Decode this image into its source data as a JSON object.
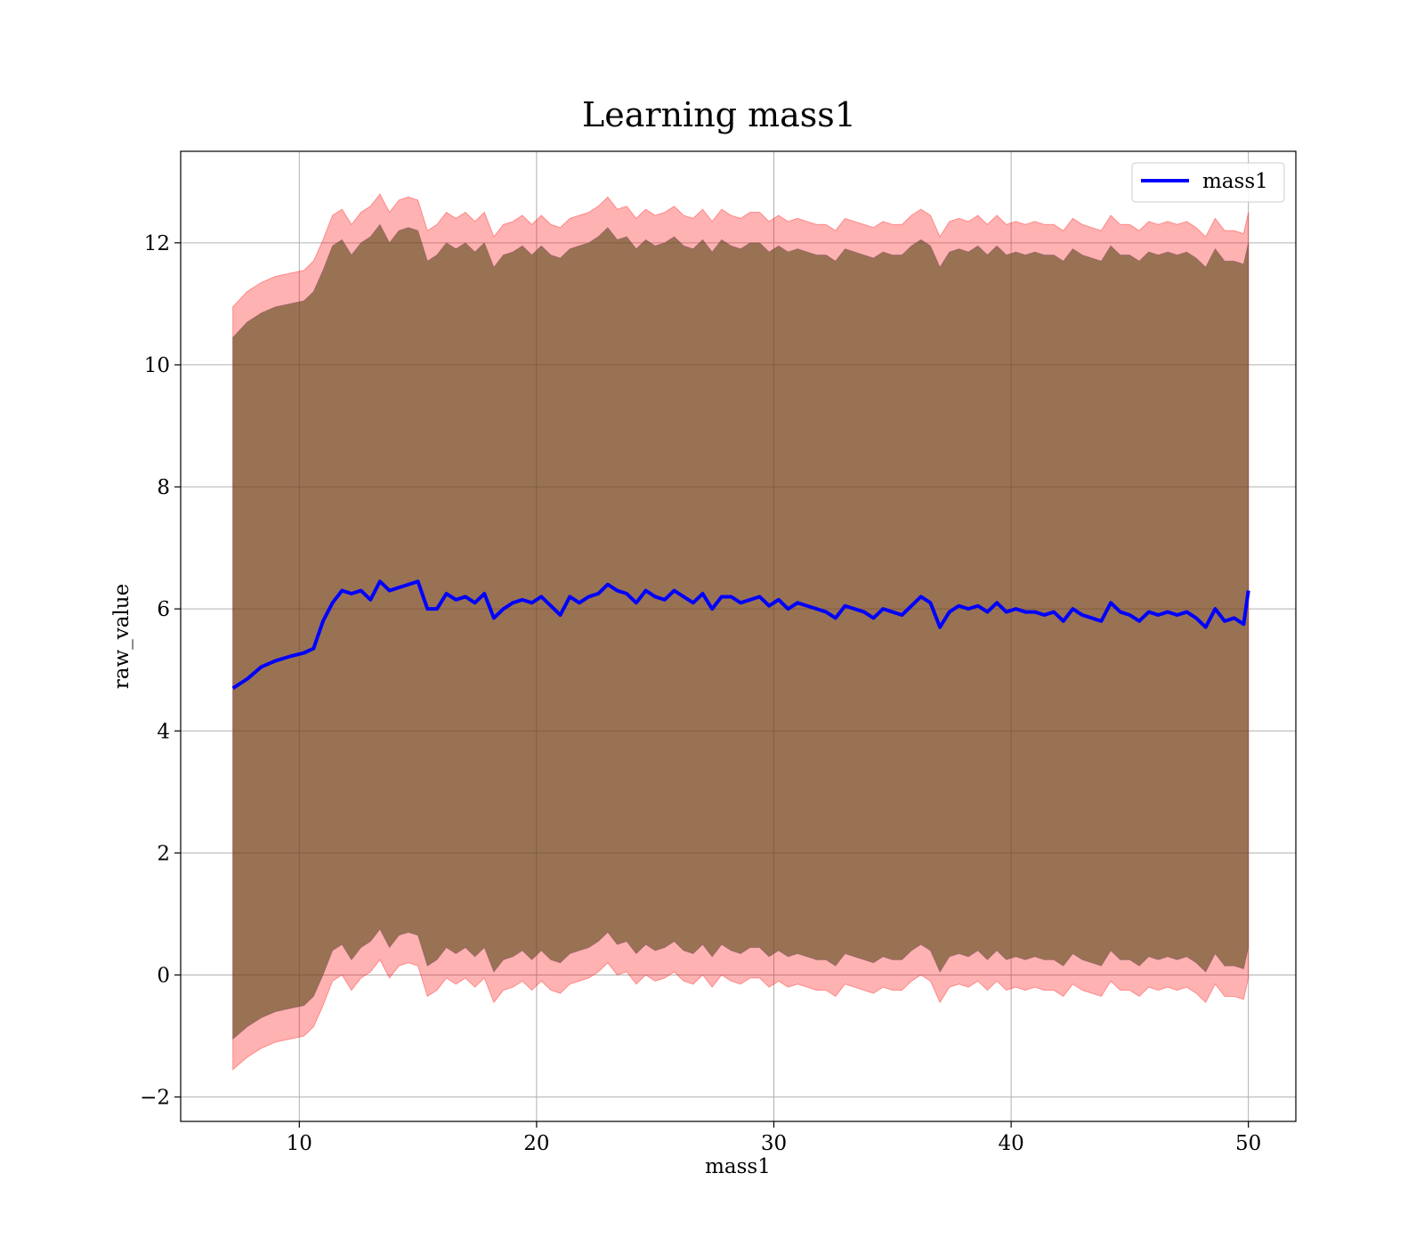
{
  "chart_data": {
    "type": "line",
    "title": "Learning mass1",
    "xlabel": "mass1",
    "ylabel": "raw_value",
    "xlim": [
      5.0,
      52.0
    ],
    "ylim": [
      -2.4,
      13.5
    ],
    "xticks": [
      10,
      20,
      30,
      40,
      50
    ],
    "yticks": [
      -2,
      0,
      2,
      4,
      6,
      8,
      10,
      12
    ],
    "grid": true,
    "legend": {
      "position": "top-right",
      "entries": [
        "mass1"
      ]
    },
    "colors": {
      "line": "#0000ff",
      "band_outer": "#ff0000",
      "band_inner": "#5a4a1a"
    },
    "series": [
      {
        "name": "mass1",
        "x": [
          7.2,
          7.8,
          8.4,
          9.0,
          9.6,
          10.2,
          10.6,
          11.0,
          11.4,
          11.8,
          12.2,
          12.6,
          13.0,
          13.4,
          13.8,
          14.2,
          14.6,
          15.0,
          15.4,
          15.8,
          16.2,
          16.6,
          17.0,
          17.4,
          17.8,
          18.2,
          18.6,
          19.0,
          19.4,
          19.8,
          20.2,
          20.6,
          21.0,
          21.4,
          21.8,
          22.2,
          22.6,
          23.0,
          23.4,
          23.8,
          24.2,
          24.6,
          25.0,
          25.4,
          25.8,
          26.2,
          26.6,
          27.0,
          27.4,
          27.8,
          28.2,
          28.6,
          29.0,
          29.4,
          29.8,
          30.2,
          30.6,
          31.0,
          31.4,
          31.8,
          32.2,
          32.6,
          33.0,
          33.4,
          33.8,
          34.2,
          34.6,
          35.0,
          35.4,
          35.8,
          36.2,
          36.6,
          37.0,
          37.4,
          37.8,
          38.2,
          38.6,
          39.0,
          39.4,
          39.8,
          40.2,
          40.6,
          41.0,
          41.4,
          41.8,
          42.2,
          42.6,
          43.0,
          43.4,
          43.8,
          44.2,
          44.6,
          45.0,
          45.4,
          45.8,
          46.2,
          46.6,
          47.0,
          47.4,
          47.8,
          48.2,
          48.6,
          49.0,
          49.4,
          49.8,
          50.0
        ],
        "mean": [
          4.7,
          4.85,
          5.05,
          5.15,
          5.22,
          5.28,
          5.35,
          5.8,
          6.1,
          6.3,
          6.25,
          6.3,
          6.15,
          6.45,
          6.3,
          6.35,
          6.4,
          6.45,
          6.0,
          6.0,
          6.25,
          6.15,
          6.2,
          6.1,
          6.25,
          5.85,
          6.0,
          6.1,
          6.15,
          6.1,
          6.2,
          6.05,
          5.9,
          6.2,
          6.1,
          6.2,
          6.25,
          6.4,
          6.3,
          6.25,
          6.1,
          6.3,
          6.2,
          6.15,
          6.3,
          6.2,
          6.1,
          6.25,
          6.0,
          6.2,
          6.2,
          6.1,
          6.15,
          6.2,
          6.05,
          6.15,
          6.0,
          6.1,
          6.05,
          6.0,
          5.95,
          5.85,
          6.05,
          6.0,
          5.95,
          5.85,
          6.0,
          5.95,
          5.9,
          6.05,
          6.2,
          6.1,
          5.7,
          5.95,
          6.05,
          6.0,
          6.05,
          5.95,
          6.1,
          5.95,
          6.0,
          5.95,
          5.95,
          5.9,
          5.95,
          5.8,
          6.0,
          5.9,
          5.85,
          5.8,
          6.1,
          5.95,
          5.9,
          5.8,
          5.95,
          5.9,
          5.95,
          5.9,
          5.95,
          5.85,
          5.7,
          6.0,
          5.8,
          5.85,
          5.75,
          6.3
        ],
        "band_outer_upper": [
          10.95,
          11.2,
          11.35,
          11.45,
          11.5,
          11.55,
          11.7,
          12.05,
          12.45,
          12.55,
          12.3,
          12.5,
          12.6,
          12.8,
          12.5,
          12.7,
          12.75,
          12.7,
          12.2,
          12.3,
          12.5,
          12.4,
          12.5,
          12.35,
          12.5,
          12.1,
          12.3,
          12.35,
          12.45,
          12.3,
          12.45,
          12.3,
          12.25,
          12.4,
          12.45,
          12.5,
          12.6,
          12.75,
          12.55,
          12.6,
          12.4,
          12.55,
          12.45,
          12.5,
          12.6,
          12.45,
          12.4,
          12.55,
          12.35,
          12.55,
          12.45,
          12.4,
          12.5,
          12.5,
          12.35,
          12.45,
          12.35,
          12.4,
          12.35,
          12.3,
          12.3,
          12.2,
          12.4,
          12.35,
          12.3,
          12.25,
          12.35,
          12.3,
          12.3,
          12.45,
          12.55,
          12.45,
          12.1,
          12.35,
          12.4,
          12.35,
          12.45,
          12.3,
          12.45,
          12.3,
          12.35,
          12.3,
          12.35,
          12.3,
          12.3,
          12.2,
          12.4,
          12.3,
          12.25,
          12.2,
          12.45,
          12.3,
          12.3,
          12.2,
          12.35,
          12.3,
          12.35,
          12.3,
          12.35,
          12.25,
          12.1,
          12.4,
          12.2,
          12.2,
          12.15,
          12.5
        ],
        "band_inner_upper": [
          10.45,
          10.7,
          10.85,
          10.95,
          11.0,
          11.05,
          11.2,
          11.55,
          11.95,
          12.05,
          11.8,
          12.0,
          12.1,
          12.3,
          12.0,
          12.2,
          12.25,
          12.2,
          11.7,
          11.8,
          12.0,
          11.9,
          12.0,
          11.85,
          12.0,
          11.6,
          11.8,
          11.85,
          11.95,
          11.8,
          11.95,
          11.8,
          11.75,
          11.9,
          11.95,
          12.0,
          12.1,
          12.25,
          12.05,
          12.1,
          11.9,
          12.05,
          11.95,
          12.0,
          12.1,
          11.95,
          11.9,
          12.05,
          11.85,
          12.05,
          11.95,
          11.9,
          12.0,
          12.0,
          11.85,
          11.95,
          11.85,
          11.9,
          11.85,
          11.8,
          11.8,
          11.7,
          11.9,
          11.85,
          11.8,
          11.75,
          11.85,
          11.8,
          11.8,
          11.95,
          12.05,
          11.95,
          11.6,
          11.85,
          11.9,
          11.85,
          11.95,
          11.8,
          11.95,
          11.8,
          11.85,
          11.8,
          11.85,
          11.8,
          11.8,
          11.7,
          11.9,
          11.8,
          11.75,
          11.7,
          11.95,
          11.8,
          11.8,
          11.7,
          11.85,
          11.8,
          11.85,
          11.8,
          11.85,
          11.75,
          11.6,
          11.9,
          11.7,
          11.7,
          11.65,
          12.0
        ],
        "band_inner_lower": [
          -1.05,
          -0.85,
          -0.7,
          -0.6,
          -0.55,
          -0.5,
          -0.35,
          0.0,
          0.4,
          0.5,
          0.25,
          0.45,
          0.55,
          0.75,
          0.45,
          0.65,
          0.7,
          0.65,
          0.15,
          0.25,
          0.45,
          0.35,
          0.45,
          0.3,
          0.45,
          0.05,
          0.25,
          0.3,
          0.4,
          0.25,
          0.4,
          0.25,
          0.2,
          0.35,
          0.4,
          0.45,
          0.55,
          0.7,
          0.5,
          0.55,
          0.35,
          0.5,
          0.4,
          0.45,
          0.55,
          0.4,
          0.35,
          0.5,
          0.3,
          0.5,
          0.4,
          0.35,
          0.45,
          0.45,
          0.3,
          0.4,
          0.3,
          0.35,
          0.3,
          0.25,
          0.25,
          0.15,
          0.35,
          0.3,
          0.25,
          0.2,
          0.3,
          0.25,
          0.25,
          0.4,
          0.5,
          0.4,
          0.05,
          0.3,
          0.35,
          0.3,
          0.4,
          0.25,
          0.4,
          0.25,
          0.3,
          0.25,
          0.3,
          0.25,
          0.25,
          0.15,
          0.35,
          0.25,
          0.2,
          0.15,
          0.4,
          0.25,
          0.25,
          0.15,
          0.3,
          0.25,
          0.3,
          0.25,
          0.3,
          0.2,
          0.05,
          0.35,
          0.15,
          0.15,
          0.1,
          0.45
        ],
        "band_outer_lower": [
          -1.55,
          -1.35,
          -1.2,
          -1.1,
          -1.05,
          -1.0,
          -0.85,
          -0.5,
          -0.1,
          0.0,
          -0.25,
          -0.05,
          0.05,
          0.25,
          -0.05,
          0.15,
          0.2,
          0.15,
          -0.35,
          -0.25,
          -0.05,
          -0.15,
          -0.05,
          -0.2,
          -0.05,
          -0.45,
          -0.25,
          -0.2,
          -0.1,
          -0.25,
          -0.1,
          -0.25,
          -0.3,
          -0.15,
          -0.1,
          -0.05,
          0.05,
          0.2,
          0.0,
          0.05,
          -0.15,
          0.0,
          -0.1,
          -0.05,
          0.05,
          -0.1,
          -0.15,
          0.0,
          -0.2,
          0.0,
          -0.1,
          -0.15,
          -0.05,
          -0.05,
          -0.2,
          -0.1,
          -0.2,
          -0.15,
          -0.2,
          -0.25,
          -0.25,
          -0.35,
          -0.15,
          -0.2,
          -0.25,
          -0.3,
          -0.2,
          -0.25,
          -0.25,
          -0.1,
          0.0,
          -0.1,
          -0.45,
          -0.2,
          -0.15,
          -0.2,
          -0.1,
          -0.25,
          -0.1,
          -0.25,
          -0.2,
          -0.25,
          -0.2,
          -0.25,
          -0.25,
          -0.35,
          -0.15,
          -0.25,
          -0.3,
          -0.35,
          -0.1,
          -0.25,
          -0.25,
          -0.35,
          -0.2,
          -0.25,
          -0.2,
          -0.25,
          -0.2,
          -0.3,
          -0.45,
          -0.15,
          -0.35,
          -0.35,
          -0.4,
          -0.05
        ]
      }
    ]
  }
}
